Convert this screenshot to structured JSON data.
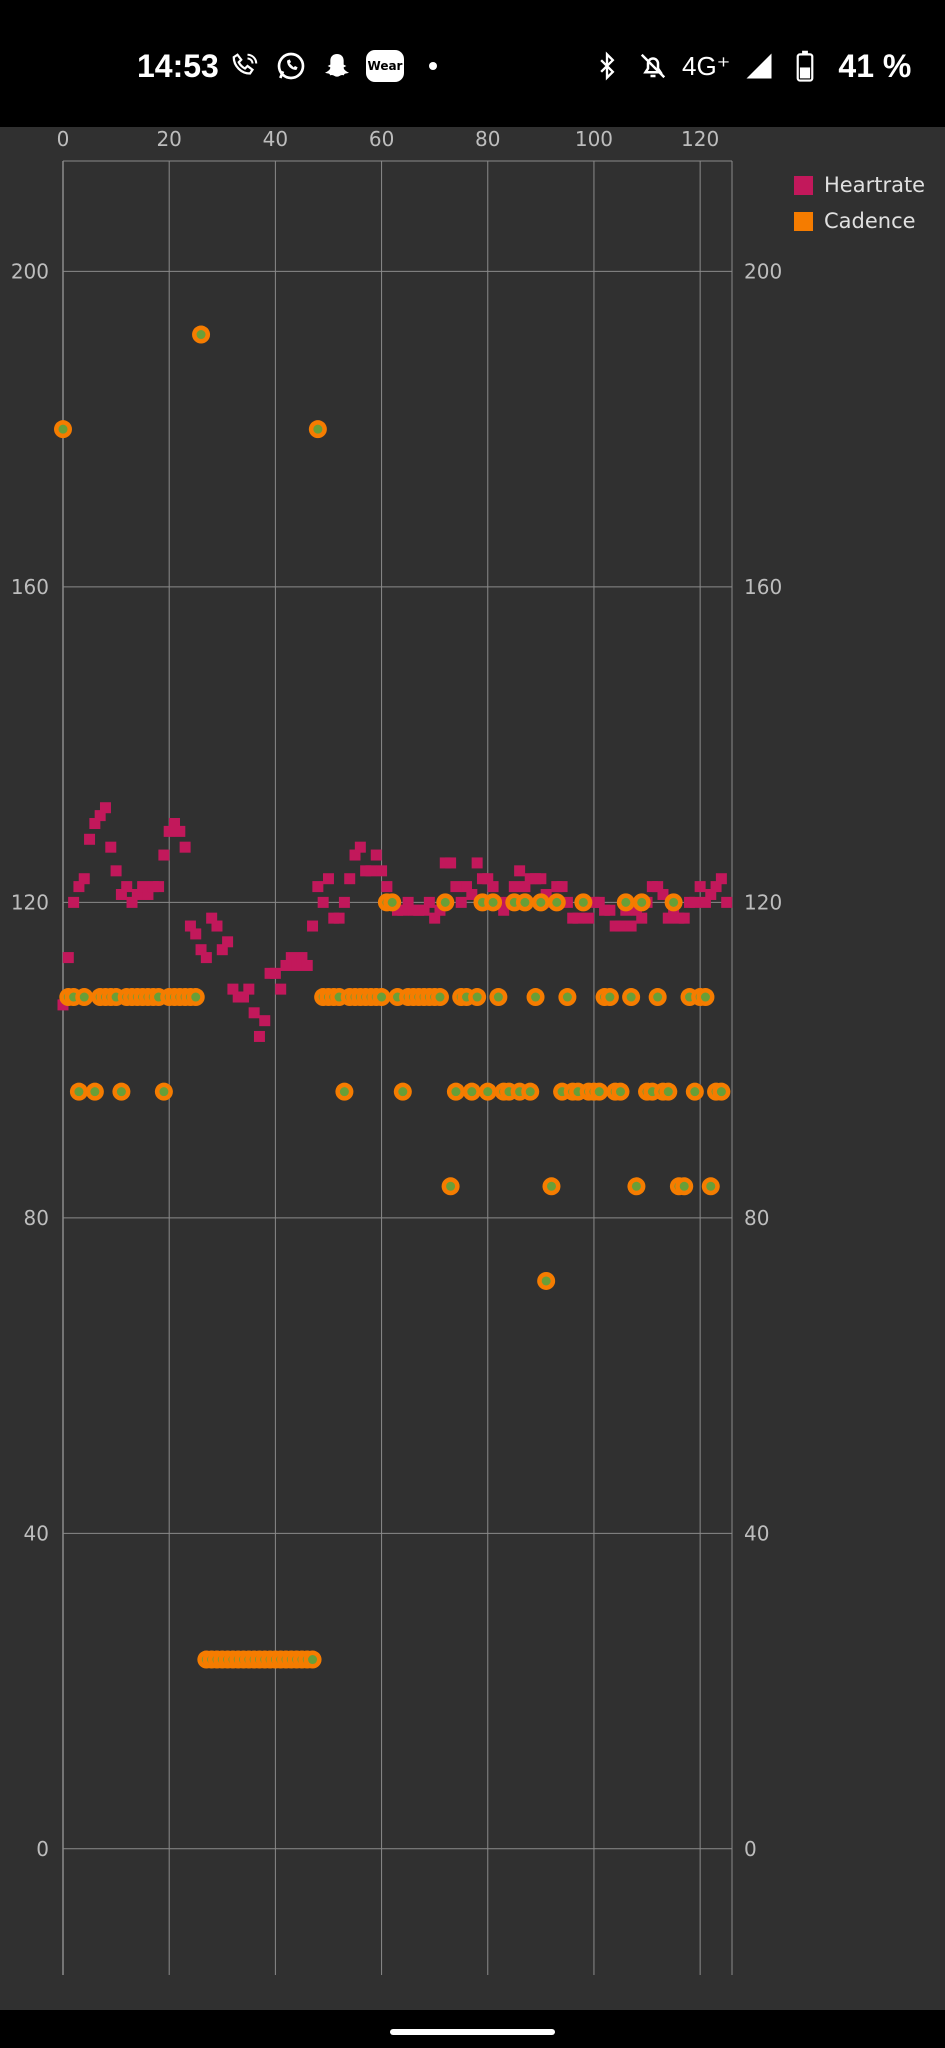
{
  "status_bar": {
    "time": "14:53",
    "network": "4G⁺",
    "battery": "41 %",
    "wear_label": "Wear",
    "icons_left": [
      "wifi-calling-icon",
      "whatsapp-icon",
      "snapchat-icon",
      "wear-os-icon",
      "dot-icon"
    ],
    "icons_right": [
      "bluetooth-icon",
      "alarm-off-icon",
      "network-type",
      "signal-icon",
      "battery-icon"
    ]
  },
  "chart_data": {
    "type": "scatter",
    "xlim": [
      0,
      126
    ],
    "x_ticks": [
      0,
      20,
      40,
      60,
      80,
      100,
      120
    ],
    "ylim": [
      -16,
      214
    ],
    "y_ticks": [
      0,
      40,
      80,
      120,
      160,
      200
    ],
    "grid": true,
    "legend_position": "top-right",
    "series": [
      {
        "name": "Heartrate",
        "marker": "square",
        "color": "#c2185b",
        "points": [
          [
            0,
            107
          ],
          [
            1,
            113
          ],
          [
            2,
            120
          ],
          [
            3,
            122
          ],
          [
            4,
            123
          ],
          [
            5,
            128
          ],
          [
            6,
            130
          ],
          [
            7,
            131
          ],
          [
            8,
            132
          ],
          [
            9,
            127
          ],
          [
            10,
            124
          ],
          [
            11,
            121
          ],
          [
            12,
            122
          ],
          [
            13,
            120
          ],
          [
            14,
            121
          ],
          [
            15,
            122
          ],
          [
            16,
            121
          ],
          [
            17,
            122
          ],
          [
            18,
            122
          ],
          [
            19,
            126
          ],
          [
            20,
            129
          ],
          [
            21,
            130
          ],
          [
            22,
            129
          ],
          [
            23,
            127
          ],
          [
            24,
            117
          ],
          [
            25,
            116
          ],
          [
            26,
            114
          ],
          [
            27,
            113
          ],
          [
            28,
            118
          ],
          [
            29,
            117
          ],
          [
            30,
            114
          ],
          [
            31,
            115
          ],
          [
            32,
            109
          ],
          [
            33,
            108
          ],
          [
            34,
            108
          ],
          [
            35,
            109
          ],
          [
            36,
            106
          ],
          [
            37,
            103
          ],
          [
            38,
            105
          ],
          [
            39,
            111
          ],
          [
            40,
            111
          ],
          [
            41,
            109
          ],
          [
            42,
            112
          ],
          [
            43,
            113
          ],
          [
            44,
            112
          ],
          [
            45,
            113
          ],
          [
            46,
            112
          ],
          [
            47,
            117
          ],
          [
            48,
            122
          ],
          [
            49,
            120
          ],
          [
            50,
            123
          ],
          [
            51,
            118
          ],
          [
            52,
            118
          ],
          [
            53,
            120
          ],
          [
            54,
            123
          ],
          [
            55,
            126
          ],
          [
            56,
            127
          ],
          [
            57,
            124
          ],
          [
            58,
            124
          ],
          [
            59,
            126
          ],
          [
            60,
            124
          ],
          [
            61,
            122
          ],
          [
            62,
            120
          ],
          [
            63,
            119
          ],
          [
            64,
            119
          ],
          [
            65,
            120
          ],
          [
            66,
            119
          ],
          [
            67,
            119
          ],
          [
            68,
            119
          ],
          [
            69,
            120
          ],
          [
            70,
            118
          ],
          [
            71,
            119
          ],
          [
            72,
            125
          ],
          [
            73,
            125
          ],
          [
            74,
            122
          ],
          [
            75,
            120
          ],
          [
            76,
            122
          ],
          [
            77,
            121
          ],
          [
            78,
            125
          ],
          [
            79,
            123
          ],
          [
            80,
            123
          ],
          [
            81,
            122
          ],
          [
            82,
            120
          ],
          [
            83,
            119
          ],
          [
            84,
            120
          ],
          [
            85,
            122
          ],
          [
            86,
            124
          ],
          [
            87,
            122
          ],
          [
            88,
            123
          ],
          [
            89,
            123
          ],
          [
            90,
            123
          ],
          [
            91,
            121
          ],
          [
            92,
            120
          ],
          [
            93,
            122
          ],
          [
            94,
            122
          ],
          [
            95,
            120
          ],
          [
            96,
            118
          ],
          [
            97,
            118
          ],
          [
            98,
            120
          ],
          [
            99,
            118
          ],
          [
            100,
            120
          ],
          [
            101,
            120
          ],
          [
            102,
            119
          ],
          [
            103,
            119
          ],
          [
            104,
            117
          ],
          [
            105,
            117
          ],
          [
            106,
            119
          ],
          [
            107,
            117
          ],
          [
            108,
            119
          ],
          [
            109,
            118
          ],
          [
            110,
            120
          ],
          [
            111,
            122
          ],
          [
            112,
            122
          ],
          [
            113,
            121
          ],
          [
            114,
            118
          ],
          [
            115,
            119
          ],
          [
            116,
            118
          ],
          [
            117,
            118
          ],
          [
            118,
            120
          ],
          [
            119,
            120
          ],
          [
            120,
            122
          ],
          [
            121,
            120
          ],
          [
            122,
            121
          ],
          [
            123,
            122
          ],
          [
            124,
            123
          ],
          [
            125,
            120
          ]
        ]
      },
      {
        "name": "Cadence",
        "marker": "circle",
        "color": "#f57c00",
        "center_color": "#689f38",
        "points": [
          [
            0,
            180
          ],
          [
            1,
            108
          ],
          [
            2,
            108
          ],
          [
            3,
            96
          ],
          [
            4,
            108
          ],
          [
            6,
            96
          ],
          [
            7,
            108
          ],
          [
            8,
            108
          ],
          [
            9,
            108
          ],
          [
            10,
            108
          ],
          [
            11,
            96
          ],
          [
            12,
            108
          ],
          [
            13,
            108
          ],
          [
            14,
            108
          ],
          [
            15,
            108
          ],
          [
            16,
            108
          ],
          [
            17,
            108
          ],
          [
            18,
            108
          ],
          [
            19,
            96
          ],
          [
            20,
            108
          ],
          [
            21,
            108
          ],
          [
            22,
            108
          ],
          [
            23,
            108
          ],
          [
            24,
            108
          ],
          [
            25,
            108
          ],
          [
            26,
            192
          ],
          [
            27,
            24
          ],
          [
            28,
            24
          ],
          [
            29,
            24
          ],
          [
            30,
            24
          ],
          [
            31,
            24
          ],
          [
            32,
            24
          ],
          [
            33,
            24
          ],
          [
            34,
            24
          ],
          [
            35,
            24
          ],
          [
            36,
            24
          ],
          [
            37,
            24
          ],
          [
            38,
            24
          ],
          [
            39,
            24
          ],
          [
            40,
            24
          ],
          [
            41,
            24
          ],
          [
            42,
            24
          ],
          [
            43,
            24
          ],
          [
            44,
            24
          ],
          [
            45,
            24
          ],
          [
            46,
            24
          ],
          [
            47,
            24
          ],
          [
            48,
            180
          ],
          [
            49,
            108
          ],
          [
            50,
            108
          ],
          [
            51,
            108
          ],
          [
            52,
            108
          ],
          [
            53,
            96
          ],
          [
            54,
            108
          ],
          [
            55,
            108
          ],
          [
            56,
            108
          ],
          [
            57,
            108
          ],
          [
            58,
            108
          ],
          [
            59,
            108
          ],
          [
            60,
            108
          ],
          [
            61,
            120
          ],
          [
            62,
            120
          ],
          [
            63,
            108
          ],
          [
            64,
            96
          ],
          [
            65,
            108
          ],
          [
            66,
            108
          ],
          [
            67,
            108
          ],
          [
            68,
            108
          ],
          [
            69,
            108
          ],
          [
            70,
            108
          ],
          [
            71,
            108
          ],
          [
            72,
            120
          ],
          [
            73,
            84
          ],
          [
            74,
            96
          ],
          [
            75,
            108
          ],
          [
            76,
            108
          ],
          [
            77,
            96
          ],
          [
            78,
            108
          ],
          [
            79,
            120
          ],
          [
            80,
            96
          ],
          [
            81,
            120
          ],
          [
            82,
            108
          ],
          [
            83,
            96
          ],
          [
            84,
            96
          ],
          [
            85,
            120
          ],
          [
            86,
            96
          ],
          [
            87,
            120
          ],
          [
            88,
            96
          ],
          [
            89,
            108
          ],
          [
            90,
            120
          ],
          [
            91,
            72
          ],
          [
            92,
            84
          ],
          [
            93,
            120
          ],
          [
            94,
            96
          ],
          [
            95,
            108
          ],
          [
            96,
            96
          ],
          [
            97,
            96
          ],
          [
            98,
            120
          ],
          [
            99,
            96
          ],
          [
            100,
            96
          ],
          [
            101,
            96
          ],
          [
            102,
            108
          ],
          [
            103,
            108
          ],
          [
            104,
            96
          ],
          [
            105,
            96
          ],
          [
            106,
            120
          ],
          [
            107,
            108
          ],
          [
            108,
            84
          ],
          [
            109,
            120
          ],
          [
            110,
            96
          ],
          [
            111,
            96
          ],
          [
            112,
            108
          ],
          [
            113,
            96
          ],
          [
            114,
            96
          ],
          [
            115,
            120
          ],
          [
            116,
            84
          ],
          [
            117,
            84
          ],
          [
            118,
            108
          ],
          [
            119,
            96
          ],
          [
            120,
            108
          ],
          [
            121,
            108
          ],
          [
            122,
            84
          ],
          [
            123,
            96
          ],
          [
            124,
            96
          ]
        ]
      }
    ]
  }
}
